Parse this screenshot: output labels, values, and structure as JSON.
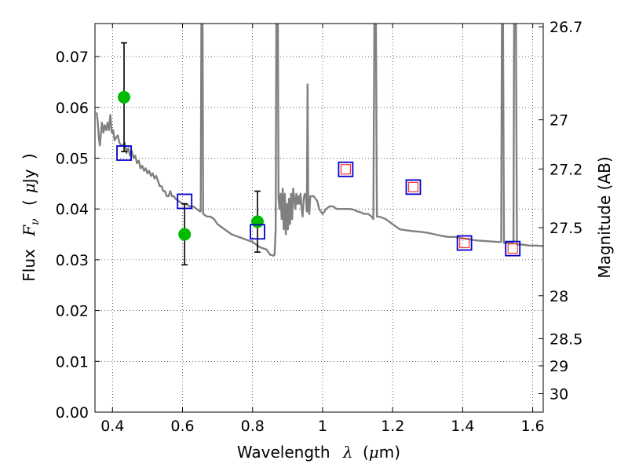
{
  "chart_data": {
    "type": "scatter",
    "xlabel_parts": [
      "Wavelength",
      "λ",
      "(",
      "μ",
      "m)"
    ],
    "ylabel_parts": [
      "Flux",
      "F",
      "ν",
      "(",
      "μ",
      "Jy",
      ")"
    ],
    "y2label": "Magnitude (AB)",
    "xlim": [
      0.35,
      1.63
    ],
    "ylim": [
      0.0,
      0.0765
    ],
    "x_ticks": [
      0.4,
      0.6,
      0.8,
      1.0,
      1.2,
      1.4,
      1.6
    ],
    "x_tick_labels": [
      "0.4",
      "0.6",
      "0.8",
      "1",
      "1.2",
      "1.4",
      "1.6"
    ],
    "y_ticks": [
      0.0,
      0.01,
      0.02,
      0.03,
      0.04,
      0.05,
      0.06,
      0.07
    ],
    "y_tick_labels": [
      "0.00",
      "0.01",
      "0.02",
      "0.03",
      "0.04",
      "0.05",
      "0.06",
      "0.07"
    ],
    "y2_ticks": [
      {
        "label": "26.7",
        "mag": 26.7
      },
      {
        "label": "27",
        "mag": 27.0
      },
      {
        "label": "27.2",
        "mag": 27.2
      },
      {
        "label": "27.5",
        "mag": 27.5
      },
      {
        "label": "28",
        "mag": 28.0
      },
      {
        "label": "28.5",
        "mag": 28.5
      },
      {
        "label": "29",
        "mag": 29.0
      },
      {
        "label": "30",
        "mag": 30.0
      }
    ],
    "grid": true,
    "colors": {
      "sed_line": "#808080",
      "observed": "#00bb00",
      "model_box": "#0000cc",
      "upper_box": "#ff3333",
      "errorbar": "#000000"
    },
    "series": [
      {
        "kind": "line",
        "points": [
          [
            0.355,
            0.059
          ],
          [
            0.358,
            0.057
          ],
          [
            0.361,
            0.054
          ],
          [
            0.364,
            0.0525
          ],
          [
            0.367,
            0.055
          ],
          [
            0.37,
            0.057
          ],
          [
            0.374,
            0.055
          ],
          [
            0.378,
            0.0565
          ],
          [
            0.382,
            0.0555
          ],
          [
            0.386,
            0.057
          ],
          [
            0.39,
            0.0555
          ],
          [
            0.394,
            0.0585
          ],
          [
            0.398,
            0.055
          ],
          [
            0.402,
            0.0555
          ],
          [
            0.406,
            0.0535
          ],
          [
            0.41,
            0.054
          ],
          [
            0.415,
            0.0545
          ],
          [
            0.42,
            0.053
          ],
          [
            0.425,
            0.0525
          ],
          [
            0.43,
            0.0525
          ],
          [
            0.435,
            0.053
          ],
          [
            0.44,
            0.051
          ],
          [
            0.445,
            0.052
          ],
          [
            0.45,
            0.0505
          ],
          [
            0.455,
            0.0515
          ],
          [
            0.46,
            0.05
          ],
          [
            0.465,
            0.0505
          ],
          [
            0.47,
            0.049
          ],
          [
            0.475,
            0.0495
          ],
          [
            0.48,
            0.048
          ],
          [
            0.485,
            0.0485
          ],
          [
            0.49,
            0.0475
          ],
          [
            0.495,
            0.048
          ],
          [
            0.5,
            0.047
          ],
          [
            0.505,
            0.0475
          ],
          [
            0.51,
            0.0465
          ],
          [
            0.515,
            0.047
          ],
          [
            0.52,
            0.046
          ],
          [
            0.525,
            0.0465
          ],
          [
            0.53,
            0.0455
          ],
          [
            0.535,
            0.0445
          ],
          [
            0.54,
            0.0445
          ],
          [
            0.545,
            0.0435
          ],
          [
            0.55,
            0.0435
          ],
          [
            0.555,
            0.0425
          ],
          [
            0.56,
            0.0425
          ],
          [
            0.565,
            0.0435
          ],
          [
            0.57,
            0.0425
          ],
          [
            0.575,
            0.0425
          ],
          [
            0.58,
            0.042
          ],
          [
            0.59,
            0.0415
          ],
          [
            0.6,
            0.041
          ],
          [
            0.61,
            0.041
          ],
          [
            0.62,
            0.0405
          ],
          [
            0.63,
            0.0405
          ],
          [
            0.64,
            0.04
          ],
          [
            0.65,
            0.0395
          ],
          [
            0.652,
            0.0395
          ],
          [
            0.654,
            0.08
          ],
          [
            0.657,
            0.08
          ],
          [
            0.659,
            0.039
          ],
          [
            0.67,
            0.0385
          ],
          [
            0.68,
            0.0385
          ],
          [
            0.69,
            0.038
          ],
          [
            0.7,
            0.037
          ],
          [
            0.72,
            0.036
          ],
          [
            0.74,
            0.035
          ],
          [
            0.76,
            0.0345
          ],
          [
            0.78,
            0.034
          ],
          [
            0.8,
            0.0335
          ],
          [
            0.82,
            0.0325
          ],
          [
            0.84,
            0.032
          ],
          [
            0.85,
            0.031
          ],
          [
            0.86,
            0.0308
          ],
          [
            0.863,
            0.031
          ],
          [
            0.866,
            0.036
          ],
          [
            0.868,
            0.08
          ],
          [
            0.872,
            0.08
          ],
          [
            0.874,
            0.042
          ],
          [
            0.877,
            0.04
          ],
          [
            0.88,
            0.043
          ],
          [
            0.883,
            0.038
          ],
          [
            0.886,
            0.044
          ],
          [
            0.889,
            0.036
          ],
          [
            0.892,
            0.043
          ],
          [
            0.895,
            0.035
          ],
          [
            0.898,
            0.041
          ],
          [
            0.901,
            0.036
          ],
          [
            0.904,
            0.042
          ],
          [
            0.907,
            0.037
          ],
          [
            0.91,
            0.043
          ],
          [
            0.913,
            0.038
          ],
          [
            0.916,
            0.044
          ],
          [
            0.919,
            0.042
          ],
          [
            0.922,
            0.04
          ],
          [
            0.925,
            0.043
          ],
          [
            0.928,
            0.041
          ],
          [
            0.931,
            0.0425
          ],
          [
            0.934,
            0.041
          ],
          [
            0.937,
            0.043
          ],
          [
            0.94,
            0.04
          ],
          [
            0.943,
            0.0385
          ],
          [
            0.946,
            0.042
          ],
          [
            0.949,
            0.043
          ],
          [
            0.952,
            0.0425
          ],
          [
            0.955,
            0.0395
          ],
          [
            0.957,
            0.0645
          ],
          [
            0.959,
            0.04
          ],
          [
            0.962,
            0.039
          ],
          [
            0.965,
            0.0425
          ],
          [
            0.97,
            0.0425
          ],
          [
            0.975,
            0.0425
          ],
          [
            0.98,
            0.042
          ],
          [
            0.985,
            0.0415
          ],
          [
            0.99,
            0.04
          ],
          [
            0.995,
            0.0395
          ],
          [
            1.0,
            0.039
          ],
          [
            1.005,
            0.0395
          ],
          [
            1.01,
            0.04
          ],
          [
            1.02,
            0.0405
          ],
          [
            1.03,
            0.0405
          ],
          [
            1.04,
            0.04
          ],
          [
            1.05,
            0.04
          ],
          [
            1.06,
            0.04
          ],
          [
            1.07,
            0.04
          ],
          [
            1.08,
            0.04
          ],
          [
            1.09,
            0.0398
          ],
          [
            1.1,
            0.0395
          ],
          [
            1.11,
            0.0393
          ],
          [
            1.12,
            0.039
          ],
          [
            1.13,
            0.039
          ],
          [
            1.14,
            0.0385
          ],
          [
            1.145,
            0.038
          ],
          [
            1.148,
            0.08
          ],
          [
            1.152,
            0.08
          ],
          [
            1.155,
            0.0385
          ],
          [
            1.16,
            0.0385
          ],
          [
            1.17,
            0.0383
          ],
          [
            1.18,
            0.038
          ],
          [
            1.19,
            0.0375
          ],
          [
            1.2,
            0.037
          ],
          [
            1.21,
            0.0365
          ],
          [
            1.22,
            0.036
          ],
          [
            1.24,
            0.0358
          ],
          [
            1.26,
            0.0356
          ],
          [
            1.28,
            0.0355
          ],
          [
            1.3,
            0.0353
          ],
          [
            1.32,
            0.035
          ],
          [
            1.34,
            0.0347
          ],
          [
            1.36,
            0.0345
          ],
          [
            1.38,
            0.0345
          ],
          [
            1.4,
            0.0342
          ],
          [
            1.42,
            0.034
          ],
          [
            1.44,
            0.0338
          ],
          [
            1.46,
            0.0337
          ],
          [
            1.48,
            0.0336
          ],
          [
            1.5,
            0.0335
          ],
          [
            1.51,
            0.0335
          ],
          [
            1.512,
            0.08
          ],
          [
            1.515,
            0.08
          ],
          [
            1.518,
            0.0333
          ],
          [
            1.53,
            0.0333
          ],
          [
            1.54,
            0.0333
          ],
          [
            1.545,
            0.0333
          ],
          [
            1.547,
            0.08
          ],
          [
            1.552,
            0.08
          ],
          [
            1.555,
            0.033
          ],
          [
            1.57,
            0.033
          ],
          [
            1.59,
            0.0328
          ],
          [
            1.61,
            0.0328
          ],
          [
            1.63,
            0.0327
          ]
        ]
      },
      {
        "kind": "observed",
        "points": [
          {
            "x": 0.433,
            "y": 0.062,
            "yerr": 0.0107
          },
          {
            "x": 0.606,
            "y": 0.035,
            "yerr": 0.006
          },
          {
            "x": 0.814,
            "y": 0.0375,
            "yerr": 0.006
          }
        ]
      },
      {
        "kind": "model",
        "points": [
          {
            "x": 0.433,
            "y": 0.051
          },
          {
            "x": 0.606,
            "y": 0.0415
          },
          {
            "x": 0.814,
            "y": 0.0355
          },
          {
            "x": 1.066,
            "y": 0.0478
          },
          {
            "x": 1.259,
            "y": 0.0443
          },
          {
            "x": 1.405,
            "y": 0.0333
          },
          {
            "x": 1.543,
            "y": 0.0322
          }
        ]
      },
      {
        "kind": "inner",
        "points": [
          {
            "x": 1.066,
            "y": 0.0478
          },
          {
            "x": 1.259,
            "y": 0.0443
          },
          {
            "x": 1.405,
            "y": 0.0333
          },
          {
            "x": 1.543,
            "y": 0.0322
          }
        ]
      }
    ]
  }
}
